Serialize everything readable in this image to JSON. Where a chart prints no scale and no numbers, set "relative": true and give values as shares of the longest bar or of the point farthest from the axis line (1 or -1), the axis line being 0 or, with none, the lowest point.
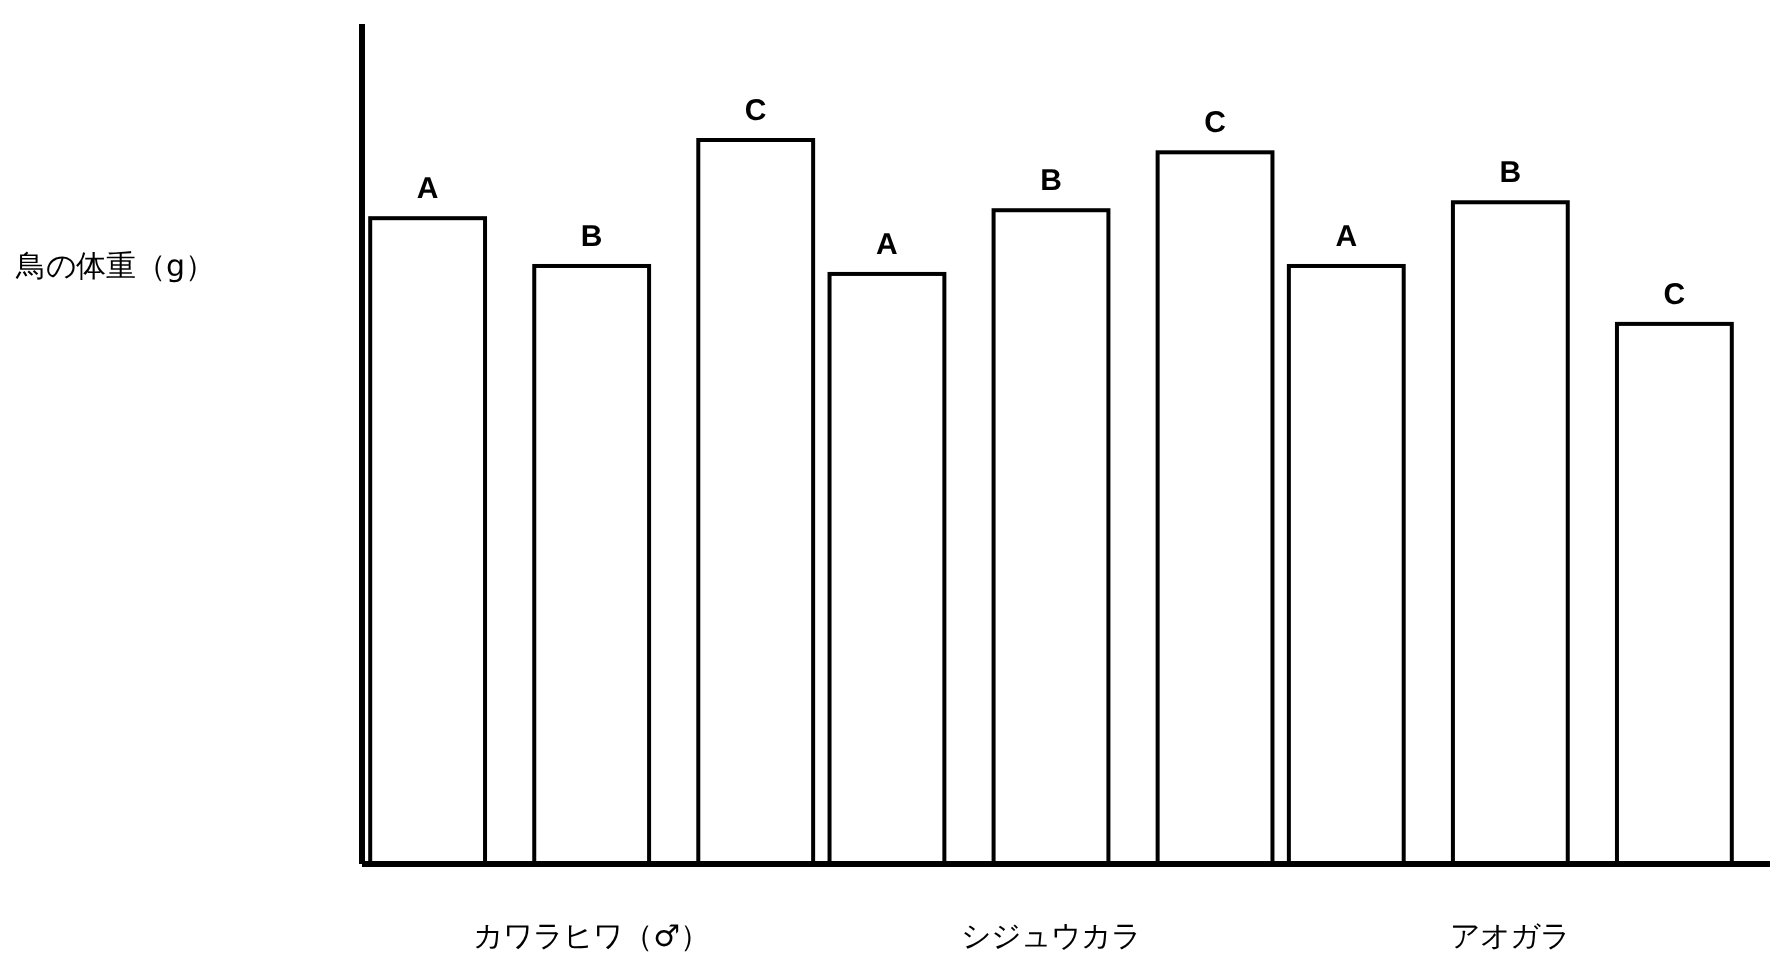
{
  "chart_data": {
    "type": "bar",
    "relative": true,
    "ylabel": "鳥の体重（g）",
    "categories": [
      "カワラヒワ（♂）",
      "シジュウカラ",
      "アオガラ"
    ],
    "series": [
      {
        "name": "A",
        "color": "#ffffff",
        "values": [
          0.892,
          0.815,
          0.826
        ]
      },
      {
        "name": "B",
        "color": "#ffffff",
        "values": [
          0.826,
          0.903,
          0.914
        ]
      },
      {
        "name": "C",
        "color": "#ffffff",
        "values": [
          1,
          0.983,
          0.746
        ]
      }
    ]
  }
}
